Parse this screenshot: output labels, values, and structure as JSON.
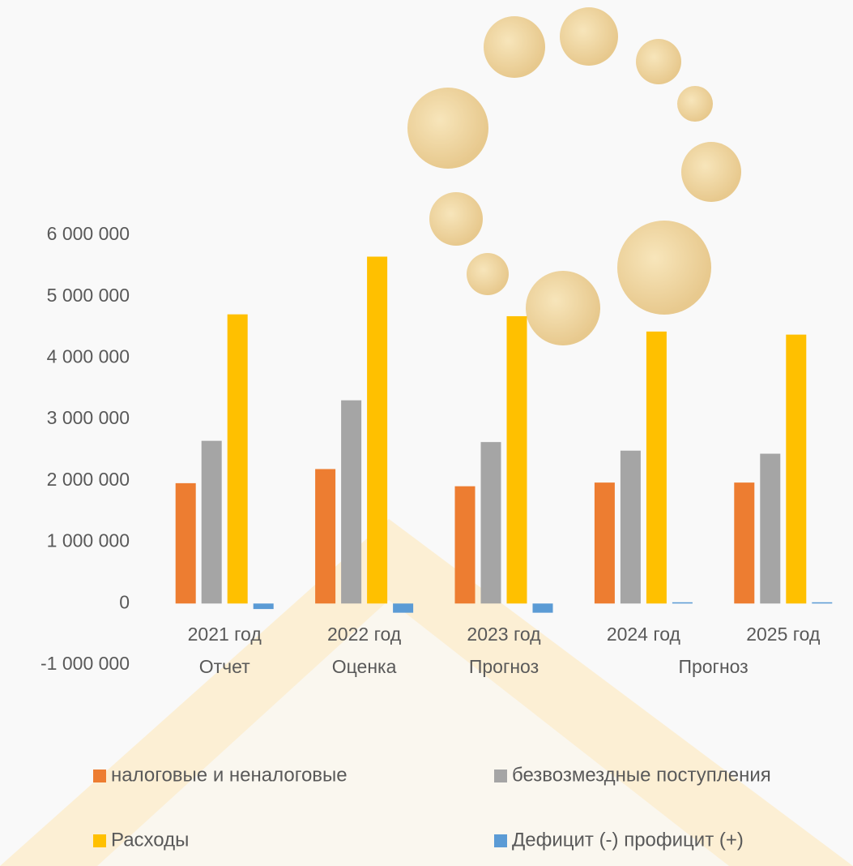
{
  "chart_data": {
    "type": "bar",
    "categories": [
      "2021 год",
      "2022 год",
      "2023 год",
      "2024 год",
      "2025 год"
    ],
    "category_groups": [
      "Отчет",
      "Оценка",
      "Прогноз",
      "Прогноз",
      null
    ],
    "series": [
      {
        "name": "налоговые и неналоговые",
        "color": "#ed7d31",
        "values": [
          1960000,
          2190000,
          1910000,
          1970000,
          1970000
        ]
      },
      {
        "name": "безвозмездные поступления",
        "color": "#a5a5a5",
        "values": [
          2650000,
          3310000,
          2630000,
          2490000,
          2440000
        ]
      },
      {
        "name": "Расходы",
        "color": "#ffc000",
        "values": [
          4710000,
          5650000,
          4680000,
          4430000,
          4380000
        ]
      },
      {
        "name": "Дефицит (-) профицит (+)",
        "color": "#5b9bd5",
        "values": [
          -90000,
          -150000,
          -150000,
          20000,
          20000
        ]
      }
    ],
    "ylim": [
      -1000000,
      6000000
    ],
    "yticks": [
      {
        "value": -1000000,
        "label": "-1 000 000"
      },
      0,
      {
        "value": 1000000,
        "label": "1 000 000"
      },
      {
        "value": 2000000,
        "label": "2 000 000"
      },
      {
        "value": 3000000,
        "label": "3 000 000"
      },
      {
        "value": 4000000,
        "label": "4 000 000"
      },
      {
        "value": 5000000,
        "label": "5 000 000"
      },
      {
        "value": 6000000,
        "label": "6 000 000"
      }
    ],
    "grid": false,
    "legend": "bottom"
  }
}
